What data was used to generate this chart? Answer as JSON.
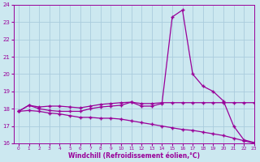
{
  "xlabel": "Windchill (Refroidissement éolien,°C)",
  "background_color": "#cce8f0",
  "line_color": "#990099",
  "grid_color": "#aaccdd",
  "x_values": [
    0,
    1,
    2,
    3,
    4,
    5,
    6,
    7,
    8,
    9,
    10,
    11,
    12,
    13,
    14,
    15,
    16,
    17,
    18,
    19,
    20,
    21,
    22,
    23
  ],
  "upper_flat_line": [
    17.85,
    18.2,
    18.1,
    18.15,
    18.15,
    18.1,
    18.05,
    18.15,
    18.25,
    18.3,
    18.35,
    18.38,
    18.3,
    18.3,
    18.35,
    18.35,
    18.35,
    18.35,
    18.35,
    18.35,
    18.35,
    18.35,
    18.35,
    18.35
  ],
  "windchill_line": [
    17.85,
    18.2,
    18.0,
    17.9,
    17.85,
    17.85,
    17.85,
    18.0,
    18.1,
    18.15,
    18.2,
    18.38,
    18.15,
    18.15,
    18.3,
    23.3,
    23.7,
    20.0,
    19.3,
    19.0,
    18.45,
    17.0,
    16.2,
    16.05
  ],
  "lower_line": [
    17.85,
    17.9,
    17.85,
    17.75,
    17.7,
    17.6,
    17.5,
    17.5,
    17.45,
    17.45,
    17.4,
    17.3,
    17.2,
    17.1,
    17.0,
    16.9,
    16.8,
    16.75,
    16.65,
    16.55,
    16.45,
    16.3,
    16.15,
    16.0
  ],
  "ylim": [
    16,
    24
  ],
  "xlim": [
    -0.5,
    23
  ],
  "yticks": [
    16,
    17,
    18,
    19,
    20,
    21,
    22,
    23,
    24
  ],
  "xticks": [
    0,
    1,
    2,
    3,
    4,
    5,
    6,
    7,
    8,
    9,
    10,
    11,
    12,
    13,
    14,
    15,
    16,
    17,
    18,
    19,
    20,
    21,
    22,
    23
  ]
}
